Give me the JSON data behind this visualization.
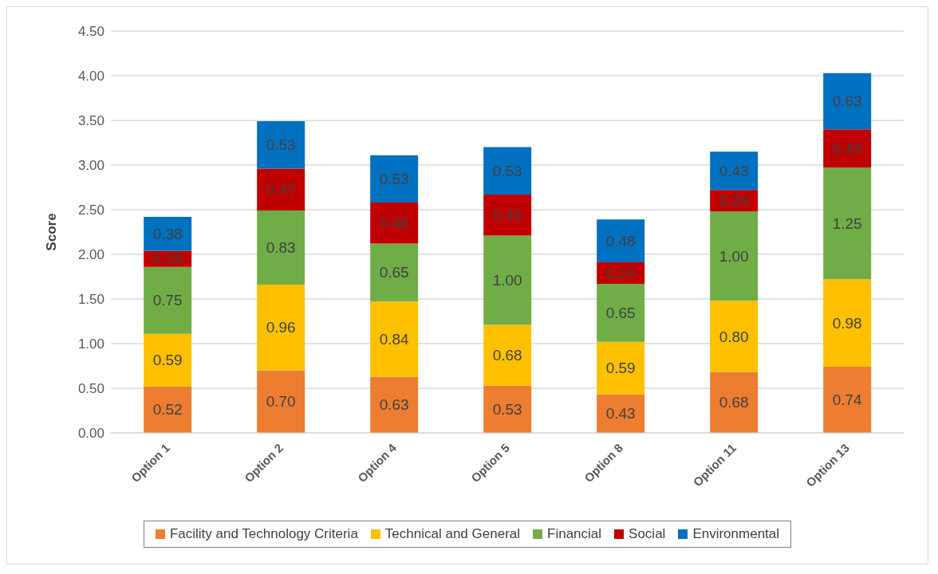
{
  "chart_data": {
    "type": "bar",
    "stacked": true,
    "ylabel": "Score",
    "categories": [
      "Option 1",
      "Option 2",
      "Option 4",
      "Option 5",
      "Option 8",
      "Option 11",
      "Option 13"
    ],
    "series": [
      {
        "name": "Facility and Technology Criteria",
        "color": "#ed7d31",
        "values": [
          0.52,
          0.7,
          0.63,
          0.53,
          0.43,
          0.68,
          0.74
        ],
        "value_labels": [
          "0.52",
          "0.70",
          "0.63",
          "0.53",
          "0.43",
          "0.68",
          "0.74"
        ]
      },
      {
        "name": "Technical and General",
        "color": "#ffc000",
        "values": [
          0.59,
          0.96,
          0.84,
          0.68,
          0.59,
          0.8,
          0.98
        ],
        "value_labels": [
          "0.59",
          "0.96",
          "0.84",
          "0.68",
          "0.59",
          "0.80",
          "0.98"
        ]
      },
      {
        "name": "Financial",
        "color": "#70ad47",
        "values": [
          0.75,
          0.83,
          0.65,
          1.0,
          0.65,
          1.0,
          1.25
        ],
        "value_labels": [
          "0.75",
          "0.83",
          "0.65",
          "1.00",
          "0.65",
          "1.00",
          "1.25"
        ]
      },
      {
        "name": "Social",
        "color": "#c00000",
        "values": [
          0.18,
          0.47,
          0.46,
          0.46,
          0.24,
          0.24,
          0.43
        ],
        "value_labels": [
          "0.18",
          "0.47",
          "0.46",
          "0.46",
          "0.24",
          "0.24",
          "0.43"
        ]
      },
      {
        "name": "Environmental",
        "color": "#0070c0",
        "values": [
          0.38,
          0.53,
          0.53,
          0.53,
          0.48,
          0.43,
          0.63
        ],
        "value_labels": [
          "0.38",
          "0.53",
          "0.53",
          "0.53",
          "0.48",
          "0.43",
          "0.63"
        ]
      }
    ],
    "ylim": [
      0,
      4.5
    ],
    "yticks": [
      {
        "value": 0,
        "label": "0.00"
      },
      {
        "value": 0.5,
        "label": "0.50"
      },
      {
        "value": 1,
        "label": "1.00"
      },
      {
        "value": 1.5,
        "label": "1.50"
      },
      {
        "value": 2,
        "label": "2.00"
      },
      {
        "value": 2.5,
        "label": "2.50"
      },
      {
        "value": 3,
        "label": "3.00"
      },
      {
        "value": 3.5,
        "label": "3.50"
      },
      {
        "value": 4,
        "label": "4.00"
      },
      {
        "value": 4.5,
        "label": "4.50"
      }
    ],
    "grid": "y",
    "legend": "bottom"
  }
}
